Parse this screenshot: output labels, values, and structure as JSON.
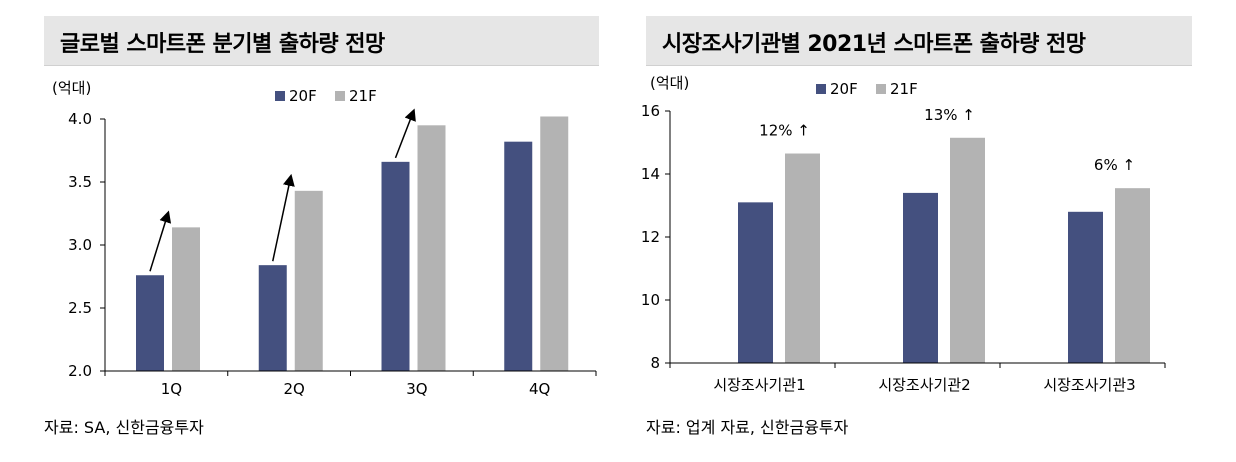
{
  "colors": {
    "s20": "#44507f",
    "s21": "#b3b3b3",
    "axis": "#000000"
  },
  "charts": [
    {
      "title": "글로벌 스마트폰 분기별 출하량 전망",
      "source": "자료: SA, 신한금융투자",
      "chart_data": {
        "type": "bar",
        "unit": "(억대)",
        "categories": [
          "1Q",
          "2Q",
          "3Q",
          "4Q"
        ],
        "series": [
          {
            "name": "20F",
            "values": [
              2.76,
              2.84,
              3.66,
              3.82
            ]
          },
          {
            "name": "21F",
            "values": [
              3.14,
              3.43,
              3.95,
              4.02
            ]
          }
        ],
        "ylim": [
          2.0,
          4.0
        ],
        "yticks": [
          "2.0",
          "2.5",
          "3.0",
          "3.5",
          "4.0"
        ],
        "legend": "top",
        "grid": false,
        "arrows": [
          0,
          1,
          2
        ]
      }
    },
    {
      "title": "시장조사기관별 2021년 스마트폰 출하량 전망",
      "source": "자료: 업계 자료, 신한금융투자",
      "chart_data": {
        "type": "bar",
        "unit": "(억대)",
        "categories": [
          "시장조사기관1",
          "시장조사기관2",
          "시장조사기관3"
        ],
        "series": [
          {
            "name": "20F",
            "values": [
              13.1,
              13.4,
              12.8
            ]
          },
          {
            "name": "21F",
            "values": [
              14.65,
              15.15,
              13.55
            ]
          }
        ],
        "ylim": [
          8,
          16
        ],
        "yticks": [
          "8",
          "10",
          "12",
          "14",
          "16"
        ],
        "legend": "top-left",
        "grid": false,
        "annotations": [
          "12% ↑",
          "13% ↑",
          "6% ↑"
        ]
      }
    }
  ]
}
